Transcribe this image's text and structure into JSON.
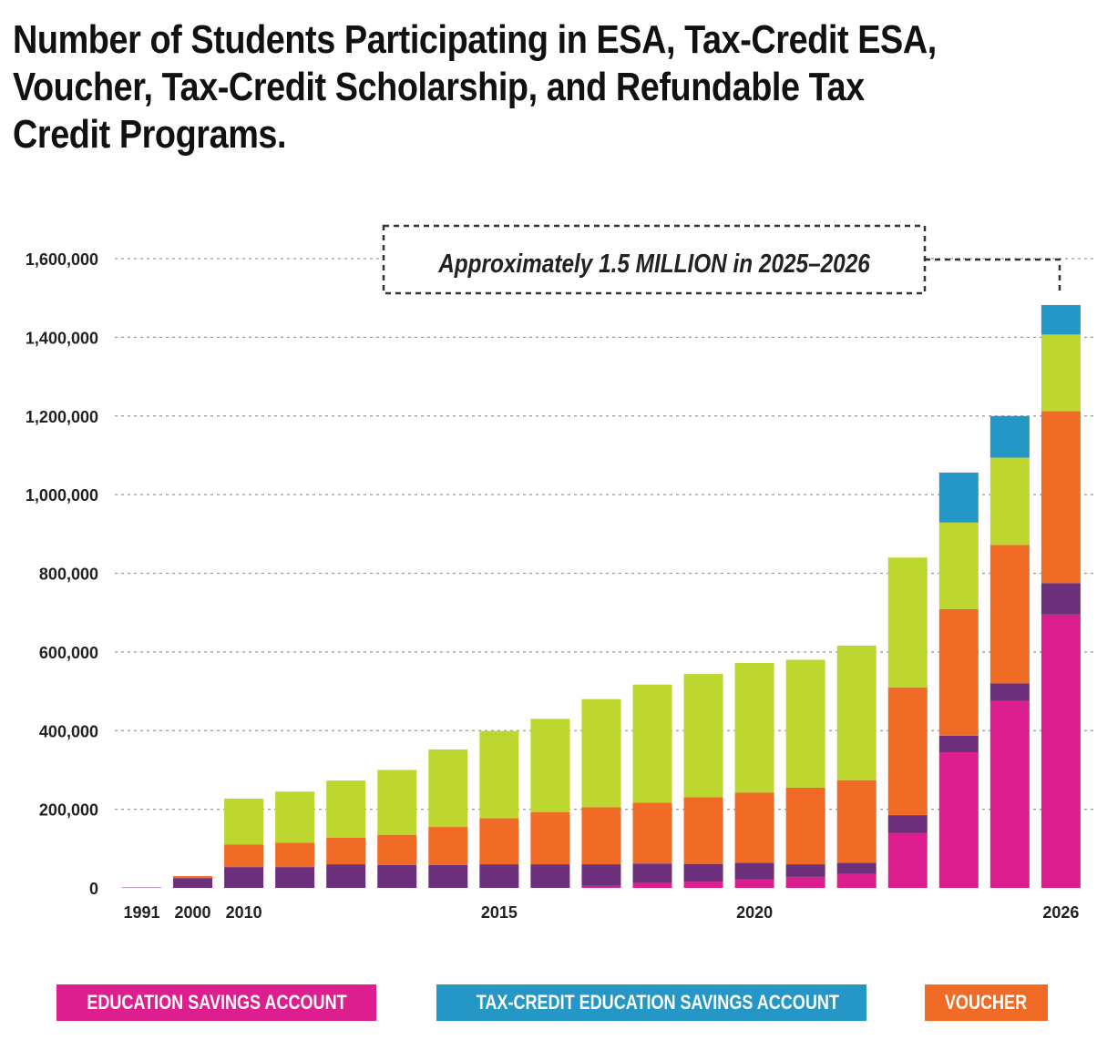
{
  "title": "Number of Students Participating in ESA, Tax-Credit ESA, Voucher, Tax-Credit Scholarship, and Refundable Tax Credit Programs.",
  "chart_data": {
    "type": "bar",
    "stacked": true,
    "title": "Number of Students Participating in ESA, Tax-Credit ESA, Voucher, Tax-Credit Scholarship, and Refundable Tax Credit Programs.",
    "xlabel": "",
    "ylabel": "",
    "ylim": [
      0,
      1600000
    ],
    "yticks": [
      0,
      200000,
      400000,
      600000,
      800000,
      1000000,
      1200000,
      1400000,
      1600000
    ],
    "ytick_labels": [
      "0",
      "200,000",
      "400,000",
      "600,000",
      "800,000",
      "1,000,000",
      "1,200,000",
      "1,400,000",
      "1,600,000"
    ],
    "grid": "dotted horizontal",
    "categories": [
      "1991",
      "2000",
      "2010",
      "2011",
      "2012",
      "2013",
      "2014",
      "2015",
      "2016",
      "2017",
      "2018",
      "2019",
      "2020",
      "2021",
      "2022",
      "2023",
      "2024",
      "2025",
      "2026"
    ],
    "xtick_labels": [
      "1991",
      "2000",
      "2010",
      "",
      "",
      "",
      "",
      "2015",
      "",
      "",
      "",
      "",
      "2020",
      "",
      "",
      "",
      "",
      "",
      "2026"
    ],
    "series": [
      {
        "name": "EDUCATION SAVINGS ACCOUNT",
        "color": "#dc1e8e",
        "values": [
          0,
          0,
          0,
          0,
          0,
          0,
          0,
          0,
          0,
          5000,
          12000,
          16000,
          22000,
          28000,
          36000,
          140000,
          345000,
          475000,
          695000
        ]
      },
      {
        "name": "REFUNDABLE TAX CREDIT",
        "color": "#6b2f7c",
        "values": [
          1000,
          25000,
          53000,
          53000,
          60000,
          58000,
          58000,
          60000,
          60000,
          55000,
          50000,
          45000,
          42000,
          32000,
          28000,
          45000,
          42000,
          45000,
          80000
        ]
      },
      {
        "name": "VOUCHER",
        "color": "#f06b26",
        "values": [
          0,
          5000,
          57000,
          62000,
          68000,
          77000,
          97000,
          117000,
          133000,
          145000,
          155000,
          170000,
          178000,
          195000,
          210000,
          325000,
          322000,
          352000,
          437000
        ]
      },
      {
        "name": "TAX-CREDIT SCHOLARSHIP",
        "color": "#bed630",
        "values": [
          0,
          0,
          117000,
          130000,
          145000,
          165000,
          197000,
          222000,
          237000,
          275000,
          300000,
          313000,
          330000,
          325000,
          342000,
          330000,
          220000,
          222000,
          195000
        ]
      },
      {
        "name": "TAX-CREDIT EDUCATION SAVINGS ACCOUNT",
        "color": "#2497c6",
        "values": [
          0,
          0,
          0,
          0,
          0,
          0,
          0,
          0,
          0,
          0,
          0,
          0,
          0,
          0,
          0,
          0,
          127000,
          106000,
          75000
        ]
      }
    ],
    "annotation": "Approximately 1.5 MILLION in 2025–2026"
  },
  "legend": [
    {
      "label": "EDUCATION SAVINGS ACCOUNT",
      "color": "#dc1e8e"
    },
    {
      "label": "TAX-CREDIT EDUCATION SAVINGS ACCOUNT",
      "color": "#2497c6"
    },
    {
      "label": "VOUCHER",
      "color": "#f06b26"
    }
  ]
}
